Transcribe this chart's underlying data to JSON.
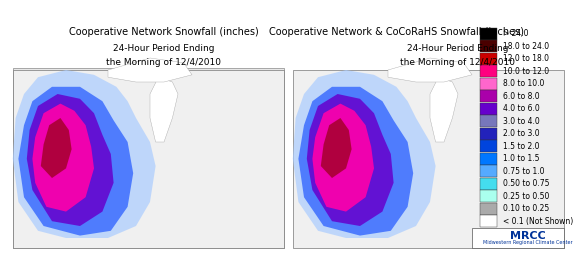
{
  "left_title_line1": "Cooperative Network Snowfall (inches)",
  "left_title_line2": "24-Hour Period Ending",
  "left_title_line3": "the Morning of 12/4/2010",
  "right_title_line1": "Cooperative Network & CoCoRaHS Snowfall (inches)",
  "right_title_line2": "24-Hour Period Ending",
  "right_title_line3": "the Morning of 12/4/2010",
  "legend_labels": [
    "> 24.0",
    "18.0 to 24.0",
    "12.0 to 18.0",
    "10.0 to 12.0",
    "8.0 to 10.0",
    "6.0 to 8.0",
    "4.0 to 6.0",
    "3.0 to 4.0",
    "2.0 to 3.0",
    "1.5 to 2.0",
    "1.0 to 1.5",
    "0.75 to 1.0",
    "0.50 to 0.75",
    "0.25 to 0.50",
    "0.10 to 0.25",
    "< 0.1 (Not Shown)"
  ],
  "legend_colors": [
    "#000000",
    "#4a0000",
    "#cc0000",
    "#ff007f",
    "#ff66cc",
    "#aa00aa",
    "#6600cc",
    "#7777bb",
    "#2222bb",
    "#0044dd",
    "#0077ff",
    "#55aaff",
    "#44ddee",
    "#aaffee",
    "#aaaaaa",
    "#ffffff"
  ],
  "bg_color": "#ffffff",
  "map_bg": "#f0f0f0",
  "title_fontsize": 7,
  "legend_fontsize": 5.5,
  "mrcc_text": "MRCC",
  "mrcc_sub": "Midwestern Regional Climate Center",
  "border_color": "#888888"
}
